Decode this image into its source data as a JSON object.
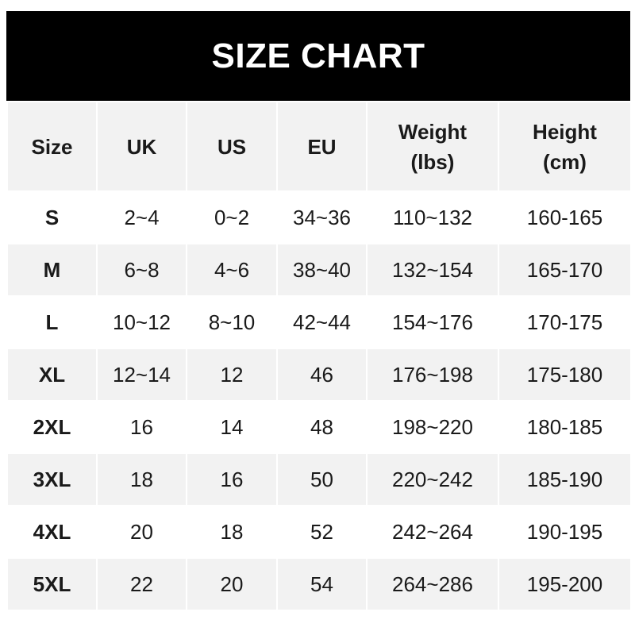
{
  "title": "SIZE CHART",
  "headers": [
    "Size",
    "UK",
    "US",
    "EU",
    "Weight\n(lbs)",
    "Height\n(cm)"
  ],
  "header_lines": {
    "weight": [
      "Weight",
      "(lbs)"
    ],
    "height": [
      "Height",
      "(cm)"
    ]
  },
  "rows": [
    [
      "S",
      "2~4",
      "0~2",
      "34~36",
      "110~132",
      "160-165"
    ],
    [
      "M",
      "6~8",
      "4~6",
      "38~40",
      "132~154",
      "165-170"
    ],
    [
      "L",
      "10~12",
      "8~10",
      "42~44",
      "154~176",
      "170-175"
    ],
    [
      "XL",
      "12~14",
      "12",
      "46",
      "176~198",
      "175-180"
    ],
    [
      "2XL",
      "16",
      "14",
      "48",
      "198~220",
      "180-185"
    ],
    [
      "3XL",
      "18",
      "16",
      "50",
      "220~242",
      "185-190"
    ],
    [
      "4XL",
      "20",
      "18",
      "52",
      "242~264",
      "190-195"
    ],
    [
      "5XL",
      "22",
      "20",
      "54",
      "264~286",
      "195-200"
    ]
  ],
  "colors": {
    "title_bg": "#000000",
    "stripe": "#f2f2f2",
    "text": "#1a1a1a"
  }
}
